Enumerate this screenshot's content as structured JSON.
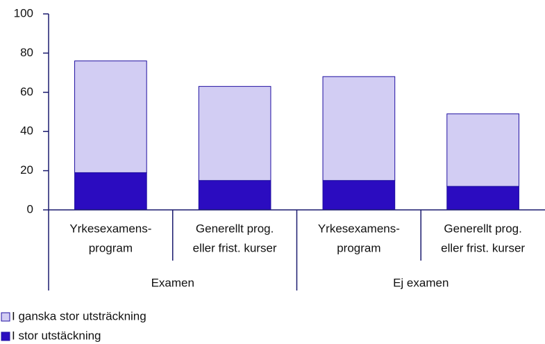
{
  "chart_data": {
    "type": "stacked_bar",
    "categories": [
      [
        "Yrkesexamens-",
        "program"
      ],
      [
        "Generellt prog.",
        "eller frist. kurser"
      ],
      [
        "Yrkesexamens-",
        "program"
      ],
      [
        "Generellt prog.",
        "eller frist. kurser"
      ]
    ],
    "groups": [
      "Examen",
      "Ej examen"
    ],
    "series": [
      {
        "name": "I stor utstäckning",
        "color": "#2b0cc0",
        "values": [
          19,
          15,
          15,
          12
        ]
      },
      {
        "name": "I ganska stor utsträckning",
        "color": "#d2cdf3",
        "values": [
          57,
          48,
          53,
          37
        ]
      }
    ],
    "ylim": [
      0,
      100
    ],
    "yticks": [
      0,
      20,
      40,
      60,
      80,
      100
    ]
  }
}
